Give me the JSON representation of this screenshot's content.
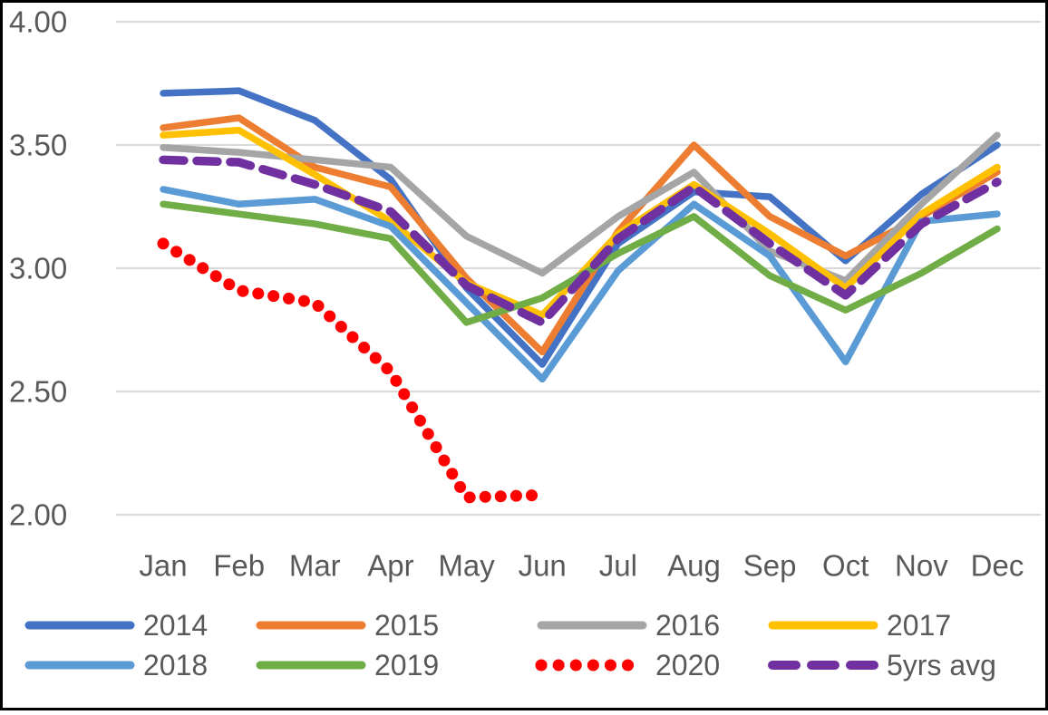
{
  "colors": {
    "background": "#FFFFFF",
    "frame_border": "#000000",
    "gridline": "#D9D9D9",
    "axis_text": "#595959"
  },
  "chart_data": {
    "type": "line",
    "title": "",
    "xlabel": "",
    "ylabel": "",
    "categories": [
      "Jan",
      "Feb",
      "Mar",
      "Apr",
      "May",
      "Jun",
      "Jul",
      "Aug",
      "Sep",
      "Oct",
      "Nov",
      "Dec"
    ],
    "y_ticks": [
      "4.00",
      "3.50",
      "3.00",
      "2.50",
      "2.00"
    ],
    "ylim": [
      2.0,
      4.0
    ],
    "grid": true,
    "legend_position": "bottom",
    "series": [
      {
        "name": "2014",
        "color": "#4472C4",
        "style": "solid",
        "values": [
          3.71,
          3.72,
          3.6,
          3.36,
          2.92,
          2.61,
          3.1,
          3.31,
          3.29,
          3.03,
          3.3,
          3.5
        ]
      },
      {
        "name": "2015",
        "color": "#ED7D31",
        "style": "solid",
        "values": [
          3.57,
          3.61,
          3.41,
          3.33,
          2.96,
          2.66,
          3.15,
          3.5,
          3.21,
          3.05,
          3.21,
          3.39
        ]
      },
      {
        "name": "2016",
        "color": "#A5A5A5",
        "style": "solid",
        "values": [
          3.49,
          3.47,
          3.44,
          3.41,
          3.13,
          2.98,
          3.21,
          3.39,
          3.07,
          2.95,
          3.26,
          3.54
        ]
      },
      {
        "name": "2017",
        "color": "#FFC000",
        "style": "solid",
        "values": [
          3.54,
          3.56,
          3.38,
          3.19,
          2.94,
          2.81,
          3.14,
          3.34,
          3.14,
          2.92,
          3.22,
          3.41
        ]
      },
      {
        "name": "2018",
        "color": "#5B9BD5",
        "style": "solid",
        "values": [
          3.32,
          3.26,
          3.28,
          3.17,
          2.86,
          2.55,
          2.99,
          3.26,
          3.05,
          2.62,
          3.19,
          3.22
        ]
      },
      {
        "name": "2019",
        "color": "#70AD47",
        "style": "solid",
        "values": [
          3.26,
          3.22,
          3.18,
          3.12,
          2.78,
          2.88,
          3.06,
          3.21,
          2.97,
          2.83,
          2.98,
          3.16
        ]
      },
      {
        "name": "2020",
        "color": "#FF0000",
        "style": "dotted",
        "values": [
          3.1,
          2.91,
          2.86,
          2.58,
          2.07,
          2.08,
          null,
          null,
          null,
          null,
          null,
          null
        ]
      },
      {
        "name": "5yrs avg",
        "color": "#7030A0",
        "style": "dashed",
        "values": [
          3.44,
          3.43,
          3.34,
          3.23,
          2.93,
          2.78,
          3.12,
          3.33,
          3.1,
          2.89,
          3.18,
          3.35
        ]
      }
    ],
    "legend_rows": [
      [
        "2014",
        "2015",
        "2016",
        "2017"
      ],
      [
        "2018",
        "2019",
        "2020",
        "5yrs avg"
      ]
    ]
  }
}
